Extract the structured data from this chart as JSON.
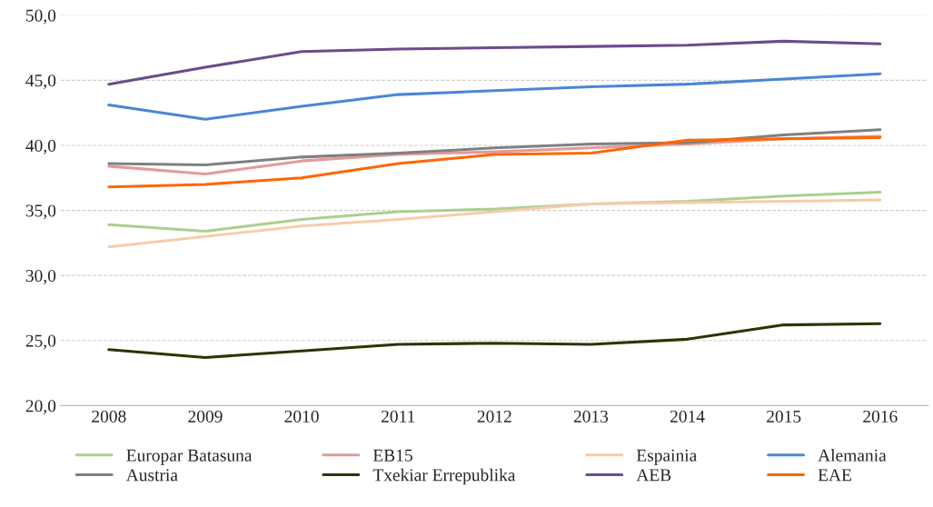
{
  "chart_data": {
    "type": "line",
    "categories": [
      "2008",
      "2009",
      "2010",
      "2011",
      "2012",
      "2013",
      "2014",
      "2015",
      "2016"
    ],
    "series": [
      {
        "name": "Europar Batasuna",
        "color": "#a9d18e",
        "values": [
          33.9,
          33.4,
          34.3,
          34.9,
          35.1,
          35.5,
          35.7,
          36.1,
          36.4
        ]
      },
      {
        "name": "EB15",
        "color": "#e39a9a",
        "values": [
          38.4,
          37.8,
          38.8,
          39.3,
          39.5,
          39.8,
          40.1,
          40.5,
          40.7
        ]
      },
      {
        "name": "Espainia",
        "color": "#f8cbad",
        "values": [
          32.2,
          33.0,
          33.8,
          34.3,
          34.9,
          35.5,
          35.6,
          35.7,
          35.8
        ]
      },
      {
        "name": "Alemania",
        "color": "#4a86d4",
        "values": [
          43.1,
          42.0,
          43.0,
          43.9,
          44.2,
          44.5,
          44.7,
          45.1,
          45.5
        ]
      },
      {
        "name": "Austria",
        "color": "#808080",
        "values": [
          38.6,
          38.5,
          39.1,
          39.4,
          39.8,
          40.1,
          40.2,
          40.8,
          41.2
        ]
      },
      {
        "name": "Txekiar Errepublika",
        "color": "#2e3300",
        "values": [
          24.3,
          23.7,
          24.2,
          24.7,
          24.8,
          24.7,
          25.1,
          26.2,
          26.3
        ]
      },
      {
        "name": "AEB",
        "color": "#6a4c8c",
        "values": [
          44.7,
          46.0,
          47.2,
          47.4,
          47.5,
          47.6,
          47.7,
          48.0,
          47.8
        ]
      },
      {
        "name": "EAE",
        "color": "#ff6600",
        "values": [
          36.8,
          37.0,
          37.5,
          38.6,
          39.3,
          39.4,
          40.4,
          40.5,
          40.6
        ]
      }
    ],
    "ylim": [
      20,
      50
    ],
    "yticks": [
      {
        "value": 20,
        "label": "20,0"
      },
      {
        "value": 25,
        "label": "25,0"
      },
      {
        "value": 30,
        "label": "30,0"
      },
      {
        "value": 35,
        "label": "35,0"
      },
      {
        "value": 40,
        "label": "40,0"
      },
      {
        "value": 45,
        "label": "45,0"
      },
      {
        "value": 50,
        "label": "50,0"
      }
    ],
    "grid": "y",
    "legend": "bottom",
    "marker": "none",
    "line_style": "solid"
  }
}
